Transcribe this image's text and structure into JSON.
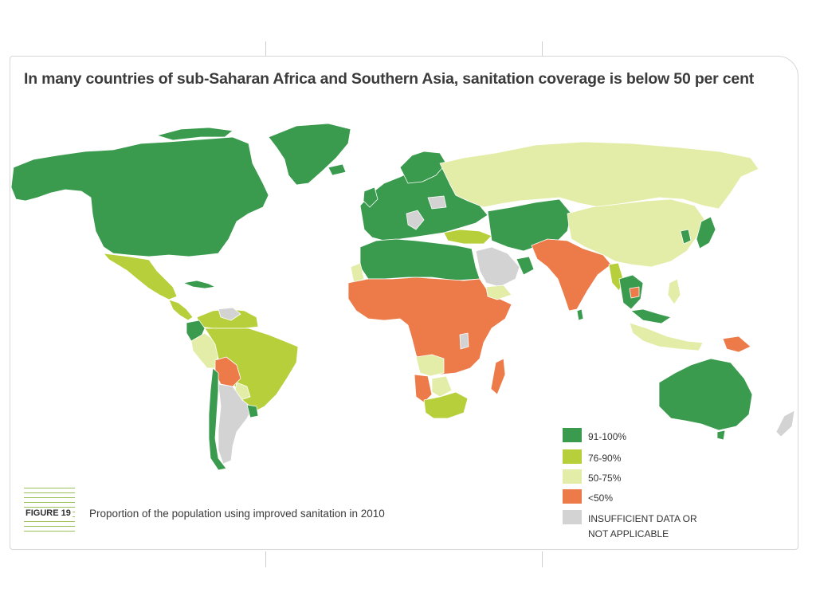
{
  "figure": {
    "title": "In many countries of sub-Saharan Africa and Southern Asia, sanitation coverage is below 50 per cent",
    "figure_label": "FIGURE 19",
    "caption": "Proportion of the population using improved sanitation in 2010"
  },
  "legend": {
    "items": [
      {
        "label": "91-100%",
        "color": "#3a9a4d"
      },
      {
        "label": "76-90%",
        "color": "#b6cf3a"
      },
      {
        "label": "50-75%",
        "color": "#e3eda7"
      },
      {
        "label": "<50%",
        "color": "#ec7b49"
      },
      {
        "label": "INSUFFICIENT DATA OR NOT APPLICABLE",
        "label_line1": "INSUFFICIENT DATA OR",
        "label_line2": "NOT APPLICABLE",
        "color": "#d3d3d3"
      }
    ]
  },
  "colors": {
    "high": "#3a9a4d",
    "mid": "#b6cf3a",
    "low": "#e3eda7",
    "verylow": "#ec7b49",
    "nodata": "#d3d3d3",
    "border": "#ffffff"
  },
  "regions": {
    "north_america": "91-100%",
    "greenland": "91-100%",
    "mexico": "76-90%",
    "central_america": "76-90%",
    "south_america_north": "76-90%",
    "brazil": "76-90%",
    "bolivia": "<50%",
    "chile": "91-100%",
    "argentina": "INSUFFICIENT DATA OR NOT APPLICABLE",
    "europe": "91-100%",
    "russia": "50-75%",
    "turkey": "76-90%",
    "north_africa": "91-100%",
    "sub_saharan_africa": "<50%",
    "south_africa": "76-90%",
    "arabia": "INSUFFICIENT DATA OR NOT APPLICABLE",
    "central_asia": "91-100%",
    "south_asia": "<50%",
    "china": "50-75%",
    "japan": "91-100%",
    "southeast_asia": "76-90%",
    "indonesia": "50-75%",
    "papua_new_guinea": "<50%",
    "australia": "91-100%",
    "madagascar": "<50%"
  }
}
